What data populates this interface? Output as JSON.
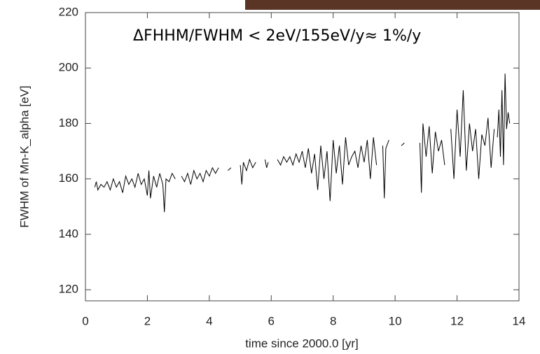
{
  "chart_data": {
    "type": "line",
    "annotation": "ΔFHHM/FWHM < 2eV/155eV/y≈ 1%/y",
    "x_label": "time since 2000.0  [yr]",
    "y_label": "FWHM of Mn-K_alpha  [eV]",
    "xlim": [
      0,
      14
    ],
    "xticks": [
      0,
      2,
      4,
      6,
      8,
      10,
      12,
      14
    ],
    "ylim": [
      116,
      220
    ],
    "yticks": [
      120,
      140,
      160,
      180,
      200,
      220
    ],
    "grid": false,
    "series": [
      {
        "color": "#000000",
        "x": [
          0.3,
          0.35,
          0.4,
          0.5,
          0.6,
          0.7,
          0.8,
          0.9,
          1.0,
          1.1,
          1.2,
          1.3,
          1.4,
          1.5,
          1.6,
          1.7,
          1.8,
          1.9,
          2.0,
          2.05,
          2.1,
          2.2,
          2.3,
          2.4,
          2.5,
          2.55,
          2.6,
          2.7,
          2.8,
          2.9,
          3.0,
          3.1,
          3.2,
          3.3,
          3.4,
          3.5,
          3.6,
          3.7,
          3.8,
          3.9,
          4.0,
          4.1,
          4.2,
          4.3,
          4.45,
          4.6,
          4.7,
          4.85,
          5.0,
          5.05,
          5.1,
          5.2,
          5.3,
          5.4,
          5.5,
          5.65,
          5.8,
          5.85,
          5.9,
          6.05,
          6.2,
          6.3,
          6.4,
          6.5,
          6.6,
          6.7,
          6.8,
          6.9,
          7.0,
          7.1,
          7.2,
          7.3,
          7.4,
          7.5,
          7.6,
          7.7,
          7.8,
          7.9,
          8.0,
          8.1,
          8.2,
          8.3,
          8.4,
          8.5,
          8.6,
          8.7,
          8.8,
          8.9,
          9.0,
          9.1,
          9.2,
          9.3,
          9.4,
          9.5,
          9.6,
          9.65,
          9.7,
          9.8,
          10.0,
          10.2,
          10.3,
          10.55,
          10.8,
          10.85,
          10.9,
          11.0,
          11.1,
          11.2,
          11.3,
          11.4,
          11.5,
          11.6,
          11.7,
          11.8,
          11.9,
          12.0,
          12.1,
          12.2,
          12.3,
          12.4,
          12.5,
          12.6,
          12.7,
          12.8,
          12.9,
          13.0,
          13.1,
          13.2,
          13.25,
          13.3,
          13.35,
          13.4,
          13.45,
          13.5,
          13.55,
          13.6,
          13.65,
          13.7
        ],
        "values": [
          157,
          159,
          156,
          158,
          157,
          159,
          156,
          160,
          157,
          159,
          155,
          161,
          158,
          160,
          157,
          162,
          158,
          160,
          154,
          163,
          153,
          161,
          157,
          162,
          158,
          148,
          160,
          159,
          162,
          160,
          null,
          161,
          159,
          162,
          158,
          163,
          160,
          162,
          159,
          163,
          161,
          164,
          162,
          164,
          null,
          163,
          164,
          null,
          165,
          158,
          166,
          163,
          167,
          164,
          166,
          null,
          167,
          164,
          166,
          null,
          167,
          165,
          168,
          166,
          168,
          165,
          169,
          166,
          170,
          164,
          171,
          162,
          169,
          156,
          172,
          160,
          170,
          152,
          174,
          162,
          172,
          158,
          175,
          165,
          168,
          170,
          164,
          172,
          166,
          174,
          160,
          175,
          165,
          null,
          172,
          153,
          171,
          174,
          null,
          172,
          173,
          null,
          173,
          155,
          180,
          168,
          179,
          162,
          177,
          170,
          174,
          165,
          null,
          178,
          160,
          185,
          168,
          192,
          163,
          180,
          170,
          178,
          160,
          176,
          172,
          182,
          164,
          178,
          null,
          175,
          185,
          168,
          192,
          165,
          198,
          178,
          184,
          180
        ]
      }
    ]
  }
}
